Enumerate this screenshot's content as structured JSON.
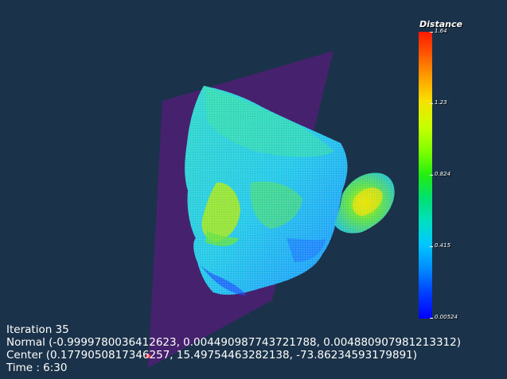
{
  "scalar_bar": {
    "title": "Distance",
    "ticks": [
      "1.64",
      "1.23",
      "0.824",
      "0.415",
      "0.00524"
    ]
  },
  "info": {
    "iteration": "Iteration 35",
    "normal": "Normal (-0.9999780036412623, 0.004490987743721788, 0.004880907981213312)",
    "center": "Center (0.1779050817346257, 15.49754463282138, -73.86234593179891)",
    "time": "Time : 6:30"
  },
  "colors": {
    "background": "#1a334a",
    "cutting_plane": "#4a2070",
    "colormap_high": "#ff1a00",
    "colormap_low": "#0000ff"
  }
}
